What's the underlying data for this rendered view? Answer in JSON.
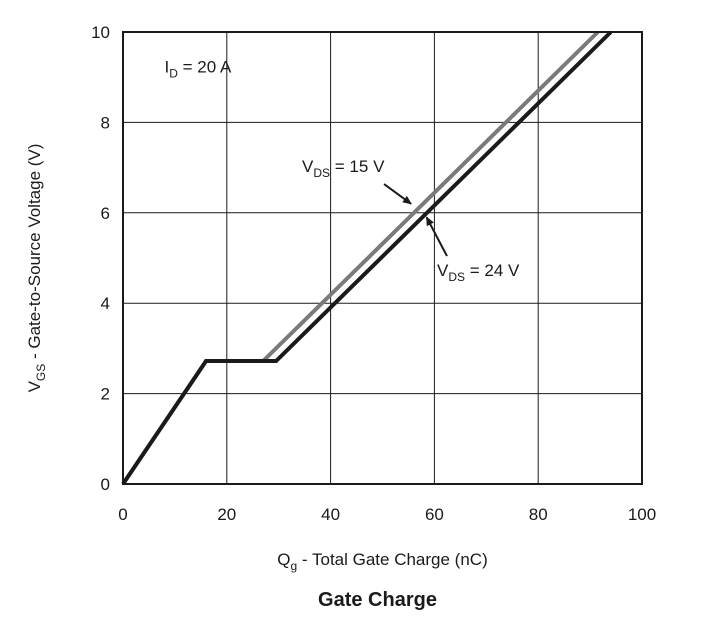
{
  "chart_data": {
    "type": "line",
    "title": "Gate Charge",
    "xlabel": {
      "main": "Q",
      "sub": "g",
      "rest": " - Total Gate Charge (nC)"
    },
    "ylabel": {
      "main": "V",
      "sub": "GS",
      "rest": " - Gate-to-Source Voltage (V)"
    },
    "xlim": [
      0,
      100
    ],
    "ylim": [
      0,
      10
    ],
    "xticks": [
      0,
      20,
      40,
      60,
      80,
      100
    ],
    "yticks": [
      0,
      2,
      4,
      6,
      8,
      10
    ],
    "grid": true,
    "annotations": [
      {
        "main": "I",
        "sub": "D",
        "rest": " = 20 A",
        "x": 8,
        "y": 9.1
      },
      {
        "main": "V",
        "sub": "DS",
        "rest": " = 15 V",
        "x": 34.5,
        "y": 6.9,
        "arrow_to": [
          55.5,
          6.2
        ]
      },
      {
        "main": "V",
        "sub": "DS",
        "rest": " = 24 V",
        "x": 60.5,
        "y": 4.6,
        "arrow_to": [
          58.5,
          5.9
        ]
      }
    ],
    "series": [
      {
        "color": "#7a7a7a",
        "x": [
          0,
          16,
          27,
          91.5
        ],
        "y": [
          0,
          2.72,
          2.72,
          10
        ]
      },
      {
        "color": "#1a1a1a",
        "x": [
          0,
          16,
          29.5,
          94
        ],
        "y": [
          0,
          2.72,
          2.72,
          10
        ]
      }
    ]
  }
}
